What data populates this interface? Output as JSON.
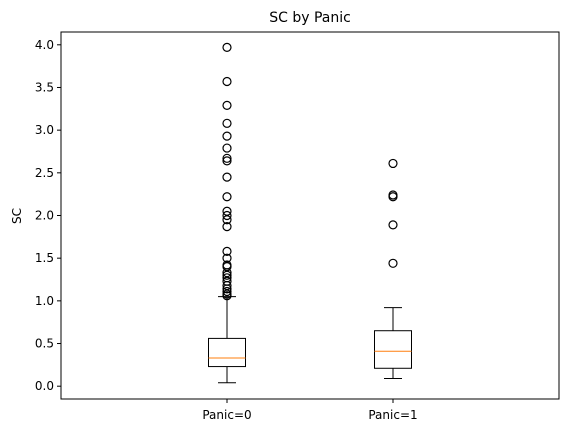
{
  "chart_data": {
    "type": "box",
    "title": "SC by Panic",
    "xlabel": "",
    "ylabel": "SC",
    "ylim": [
      -0.15,
      4.15
    ],
    "yticks": [
      0.0,
      0.5,
      1.0,
      1.5,
      2.0,
      2.5,
      3.0,
      3.5,
      4.0
    ],
    "ytick_labels": [
      "0.0",
      "0.5",
      "1.0",
      "1.5",
      "2.0",
      "2.5",
      "3.0",
      "3.5",
      "4.0"
    ],
    "grid": false,
    "categories": [
      "Panic=0",
      "Panic=1"
    ],
    "boxes": [
      {
        "category": "Panic=0",
        "whisker_low": 0.04,
        "q1": 0.23,
        "median": 0.33,
        "q3": 0.56,
        "whisker_high": 1.05,
        "outliers": [
          1.06,
          1.08,
          1.11,
          1.14,
          1.18,
          1.23,
          1.27,
          1.3,
          1.33,
          1.4,
          1.42,
          1.5,
          1.58,
          1.87,
          1.95,
          2.0,
          2.05,
          2.22,
          2.45,
          2.64,
          2.67,
          2.79,
          2.93,
          3.08,
          3.29,
          3.57,
          3.97
        ]
      },
      {
        "category": "Panic=1",
        "whisker_low": 0.09,
        "q1": 0.21,
        "median": 0.41,
        "q3": 0.65,
        "whisker_high": 0.92,
        "outliers": [
          1.44,
          1.89,
          2.22,
          2.24,
          2.61
        ]
      }
    ],
    "colors": {
      "box": "#000000",
      "median": "#ff7f0e",
      "outlier": "#000000"
    }
  }
}
